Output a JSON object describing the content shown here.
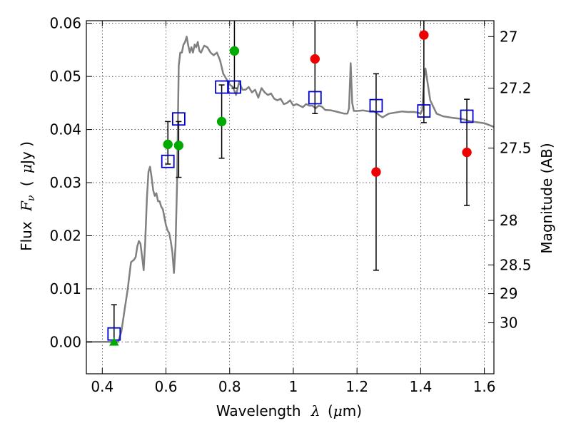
{
  "chart_data": {
    "type": "scatter",
    "xlabel": "Wavelength",
    "xlabel_symbol": "λ",
    "xlabel_unit_prefix": "(",
    "xlabel_unit_mu": "μ",
    "xlabel_unit_rest": "m)",
    "ylabel": "Flux",
    "ylabel_symbol": "F",
    "ylabel_symbol_sub": "ν",
    "ylabel_unit_prefix": "(",
    "ylabel_unit_mu": "μ",
    "ylabel_unit_rest": "Jy )",
    "y2label": "Magnitude (AB)",
    "xlim": [
      0.35,
      1.63
    ],
    "ylim": [
      -0.006,
      0.0605
    ],
    "grid": true,
    "x_ticks": [
      {
        "value": 0.4,
        "label": "0.4"
      },
      {
        "value": 0.6,
        "label": "0.6"
      },
      {
        "value": 0.8,
        "label": "0.8"
      },
      {
        "value": 1.0,
        "label": "1"
      },
      {
        "value": 1.2,
        "label": "1.2"
      },
      {
        "value": 1.4,
        "label": "1.4"
      },
      {
        "value": 1.6,
        "label": "1.6"
      }
    ],
    "y_ticks": [
      {
        "value": 0.0,
        "label": "0.00"
      },
      {
        "value": 0.01,
        "label": "0.01"
      },
      {
        "value": 0.02,
        "label": "0.02"
      },
      {
        "value": 0.03,
        "label": "0.03"
      },
      {
        "value": 0.04,
        "label": "0.04"
      },
      {
        "value": 0.05,
        "label": "0.05"
      },
      {
        "value": 0.06,
        "label": "0.06"
      }
    ],
    "y2_ticks": [
      {
        "flux": 0.0575,
        "label": "27"
      },
      {
        "flux": 0.0478,
        "label": "27.2"
      },
      {
        "flux": 0.0365,
        "label": "27.5"
      },
      {
        "flux": 0.0229,
        "label": "28"
      },
      {
        "flux": 0.0145,
        "label": "28.5"
      },
      {
        "flux": 0.0091,
        "label": "29"
      },
      {
        "flux": 0.0036,
        "label": "30"
      }
    ],
    "series": [
      {
        "kind": "line",
        "color": "#808080",
        "x": [
          0.35,
          0.45,
          0.46,
          0.47,
          0.48,
          0.49,
          0.5,
          0.505,
          0.51,
          0.515,
          0.52,
          0.525,
          0.53,
          0.535,
          0.54,
          0.545,
          0.55,
          0.555,
          0.56,
          0.565,
          0.57,
          0.575,
          0.58,
          0.585,
          0.59,
          0.595,
          0.6,
          0.605,
          0.61,
          0.615,
          0.62,
          0.625,
          0.63,
          0.635,
          0.64,
          0.645,
          0.65,
          0.655,
          0.66,
          0.665,
          0.67,
          0.675,
          0.68,
          0.685,
          0.69,
          0.695,
          0.7,
          0.705,
          0.71,
          0.72,
          0.73,
          0.74,
          0.75,
          0.76,
          0.77,
          0.78,
          0.79,
          0.8,
          0.81,
          0.82,
          0.83,
          0.84,
          0.85,
          0.86,
          0.87,
          0.88,
          0.89,
          0.9,
          0.91,
          0.92,
          0.93,
          0.94,
          0.95,
          0.96,
          0.97,
          0.98,
          0.99,
          1.0,
          1.01,
          1.02,
          1.03,
          1.04,
          1.05,
          1.06,
          1.07,
          1.08,
          1.09,
          1.1,
          1.12,
          1.14,
          1.16,
          1.17,
          1.175,
          1.18,
          1.185,
          1.19,
          1.2,
          1.22,
          1.24,
          1.25,
          1.26,
          1.27,
          1.28,
          1.3,
          1.32,
          1.34,
          1.36,
          1.38,
          1.39,
          1.4,
          1.405,
          1.41,
          1.415,
          1.42,
          1.43,
          1.45,
          1.47,
          1.5,
          1.53,
          1.56,
          1.6,
          1.63
        ],
        "y": [
          0.0,
          0.0,
          0.002,
          0.006,
          0.01,
          0.015,
          0.0155,
          0.016,
          0.018,
          0.019,
          0.0185,
          0.016,
          0.0135,
          0.019,
          0.027,
          0.032,
          0.033,
          0.031,
          0.0285,
          0.0275,
          0.028,
          0.0265,
          0.0265,
          0.0255,
          0.025,
          0.0235,
          0.022,
          0.021,
          0.0205,
          0.019,
          0.017,
          0.013,
          0.018,
          0.03,
          0.052,
          0.0545,
          0.0545,
          0.056,
          0.0565,
          0.0575,
          0.0558,
          0.0545,
          0.0555,
          0.0545,
          0.056,
          0.0555,
          0.0565,
          0.0548,
          0.0545,
          0.0558,
          0.0555,
          0.0545,
          0.054,
          0.0545,
          0.053,
          0.0505,
          0.0495,
          0.0485,
          0.048,
          0.0465,
          0.049,
          0.0475,
          0.0475,
          0.048,
          0.047,
          0.0475,
          0.046,
          0.0478,
          0.047,
          0.0465,
          0.0468,
          0.0458,
          0.0455,
          0.0458,
          0.0448,
          0.045,
          0.0455,
          0.0445,
          0.0448,
          0.0445,
          0.0442,
          0.0448,
          0.0445,
          0.0445,
          0.044,
          0.0445,
          0.0443,
          0.0437,
          0.0436,
          0.0433,
          0.043,
          0.043,
          0.044,
          0.0525,
          0.045,
          0.0435,
          0.0435,
          0.0436,
          0.0434,
          0.0435,
          0.0432,
          0.0427,
          0.0423,
          0.043,
          0.0432,
          0.0434,
          0.0433,
          0.0433,
          0.0432,
          0.043,
          0.0437,
          0.0495,
          0.0515,
          0.0495,
          0.0455,
          0.043,
          0.0425,
          0.0422,
          0.042,
          0.0415,
          0.0412,
          0.0405
        ]
      },
      {
        "kind": "open-square",
        "color": "#0000cc",
        "points": [
          {
            "x": 0.437,
            "y": 0.0015,
            "err_low": 0.0015,
            "err_high": 0.0055
          },
          {
            "x": 0.606,
            "y": 0.034
          },
          {
            "x": 0.64,
            "y": 0.042
          },
          {
            "x": 0.775,
            "y": 0.048
          },
          {
            "x": 0.815,
            "y": 0.048
          },
          {
            "x": 1.068,
            "y": 0.046
          },
          {
            "x": 1.26,
            "y": 0.0445
          },
          {
            "x": 1.41,
            "y": 0.0435
          },
          {
            "x": 1.545,
            "y": 0.0425
          }
        ]
      },
      {
        "kind": "filled-circle",
        "color": "#00aa00",
        "points": [
          {
            "x": 0.606,
            "y": 0.0372,
            "err_low": 0.0037,
            "err_high": 0.0043
          },
          {
            "x": 0.64,
            "y": 0.037,
            "err_low": 0.006,
            "err_high": 0.0045
          },
          {
            "x": 0.775,
            "y": 0.0415,
            "err_low": 0.0069,
            "err_high": 0.0069
          },
          {
            "x": 0.815,
            "y": 0.0548,
            "err_low": 0.007,
            "err_high": 0.0057
          }
        ]
      },
      {
        "kind": "filled-circle",
        "color": "#ee0000",
        "points": [
          {
            "x": 1.068,
            "y": 0.0533,
            "err_low": 0.0103,
            "err_high": 0.0072
          },
          {
            "x": 1.26,
            "y": 0.032,
            "err_low": 0.0185,
            "err_high": 0.0185
          },
          {
            "x": 1.41,
            "y": 0.0578,
            "err_low": 0.0165,
            "err_high": 0.0027
          },
          {
            "x": 1.545,
            "y": 0.0357,
            "err_low": 0.01,
            "err_high": 0.01
          }
        ]
      },
      {
        "kind": "filled-triangle",
        "color": "#00aa00",
        "points": [
          {
            "x": 0.437,
            "y": 0.0
          }
        ]
      }
    ],
    "reference_lines": [
      {
        "y": 0.0,
        "style": "dash-dot",
        "color": "#808080"
      }
    ]
  }
}
